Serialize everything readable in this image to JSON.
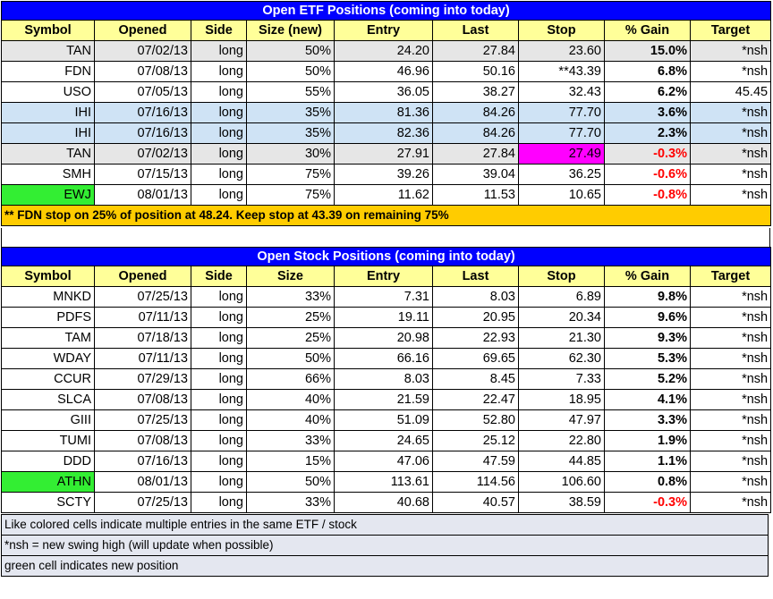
{
  "etf": {
    "title": "Open ETF Positions (coming into today)",
    "headers": [
      "Symbol",
      "Opened",
      "Side",
      "Size (new)",
      "Entry",
      "Last",
      "Stop",
      "% Gain",
      "Target"
    ],
    "rows": [
      {
        "symbol": "TAN",
        "opened": "07/02/13",
        "side": "long",
        "size": "50%",
        "entry": "24.20",
        "last": "27.84",
        "stop": "23.60",
        "gain": "15.0%",
        "target": "*nsh"
      },
      {
        "symbol": "FDN",
        "opened": "07/08/13",
        "side": "long",
        "size": "50%",
        "entry": "46.96",
        "last": "50.16",
        "stop": "**43.39",
        "gain": "6.8%",
        "target": "*nsh"
      },
      {
        "symbol": "USO",
        "opened": "07/05/13",
        "side": "long",
        "size": "55%",
        "entry": "36.05",
        "last": "38.27",
        "stop": "32.43",
        "gain": "6.2%",
        "target": "45.45"
      },
      {
        "symbol": "IHI",
        "opened": "07/16/13",
        "side": "long",
        "size": "35%",
        "entry": "81.36",
        "last": "84.26",
        "stop": "77.70",
        "gain": "3.6%",
        "target": "*nsh"
      },
      {
        "symbol": "IHI",
        "opened": "07/16/13",
        "side": "long",
        "size": "35%",
        "entry": "82.36",
        "last": "84.26",
        "stop": "77.70",
        "gain": "2.3%",
        "target": "*nsh"
      },
      {
        "symbol": "TAN",
        "opened": "07/02/13",
        "side": "long",
        "size": "30%",
        "entry": "27.91",
        "last": "27.84",
        "stop": "27.49",
        "gain": "-0.3%",
        "target": "*nsh"
      },
      {
        "symbol": "SMH",
        "opened": "07/15/13",
        "side": "long",
        "size": "75%",
        "entry": "39.26",
        "last": "39.04",
        "stop": "36.25",
        "gain": "-0.6%",
        "target": "*nsh"
      },
      {
        "symbol": "EWJ",
        "opened": "08/01/13",
        "side": "long",
        "size": "75%",
        "entry": "11.62",
        "last": "11.53",
        "stop": "10.65",
        "gain": "-0.8%",
        "target": "*nsh"
      }
    ],
    "note": "** FDN stop on 25% of position at 48.24.  Keep stop at 43.39 on remaining 75%"
  },
  "stock": {
    "title": "Open Stock Positions (coming into today)",
    "headers": [
      "Symbol",
      "Opened",
      "Side",
      "Size",
      "Entry",
      "Last",
      "Stop",
      "% Gain",
      "Target"
    ],
    "rows": [
      {
        "symbol": "MNKD",
        "opened": "07/25/13",
        "side": "long",
        "size": "33%",
        "entry": "7.31",
        "last": "8.03",
        "stop": "6.89",
        "gain": "9.8%",
        "target": "*nsh"
      },
      {
        "symbol": "PDFS",
        "opened": "07/11/13",
        "side": "long",
        "size": "25%",
        "entry": "19.11",
        "last": "20.95",
        "stop": "20.34",
        "gain": "9.6%",
        "target": "*nsh"
      },
      {
        "symbol": "TAM",
        "opened": "07/18/13",
        "side": "long",
        "size": "25%",
        "entry": "20.98",
        "last": "22.93",
        "stop": "21.30",
        "gain": "9.3%",
        "target": "*nsh"
      },
      {
        "symbol": "WDAY",
        "opened": "07/11/13",
        "side": "long",
        "size": "50%",
        "entry": "66.16",
        "last": "69.65",
        "stop": "62.30",
        "gain": "5.3%",
        "target": "*nsh"
      },
      {
        "symbol": "CCUR",
        "opened": "07/29/13",
        "side": "long",
        "size": "66%",
        "entry": "8.03",
        "last": "8.45",
        "stop": "7.33",
        "gain": "5.2%",
        "target": "*nsh"
      },
      {
        "symbol": "SLCA",
        "opened": "07/08/13",
        "side": "long",
        "size": "40%",
        "entry": "21.59",
        "last": "22.47",
        "stop": "18.95",
        "gain": "4.1%",
        "target": "*nsh"
      },
      {
        "symbol": "GIII",
        "opened": "07/25/13",
        "side": "long",
        "size": "40%",
        "entry": "51.09",
        "last": "52.80",
        "stop": "47.97",
        "gain": "3.3%",
        "target": "*nsh"
      },
      {
        "symbol": "TUMI",
        "opened": "07/08/13",
        "side": "long",
        "size": "33%",
        "entry": "24.65",
        "last": "25.12",
        "stop": "22.80",
        "gain": "1.9%",
        "target": "*nsh"
      },
      {
        "symbol": "DDD",
        "opened": "07/16/13",
        "side": "long",
        "size": "15%",
        "entry": "47.06",
        "last": "47.59",
        "stop": "44.85",
        "gain": "1.1%",
        "target": "*nsh"
      },
      {
        "symbol": "ATHN",
        "opened": "08/01/13",
        "side": "long",
        "size": "50%",
        "entry": "113.61",
        "last": "114.56",
        "stop": "106.60",
        "gain": "0.8%",
        "target": "*nsh"
      },
      {
        "symbol": "SCTY",
        "opened": "07/25/13",
        "side": "long",
        "size": "33%",
        "entry": "40.68",
        "last": "40.57",
        "stop": "38.59",
        "gain": "-0.3%",
        "target": "*nsh"
      }
    ]
  },
  "footnotes": [
    "Like colored cells indicate multiple entries in the same ETF / stock",
    "*nsh = new swing high (will update when possible)",
    "green cell indicates new position"
  ],
  "colors": {
    "title_bg": "#0000ff",
    "header_bg": "#ffff99",
    "new_position": "#33ee33",
    "stop_highlight": "#ff00ff",
    "note_bg": "#ffcc00",
    "negative": "#ff0000"
  }
}
